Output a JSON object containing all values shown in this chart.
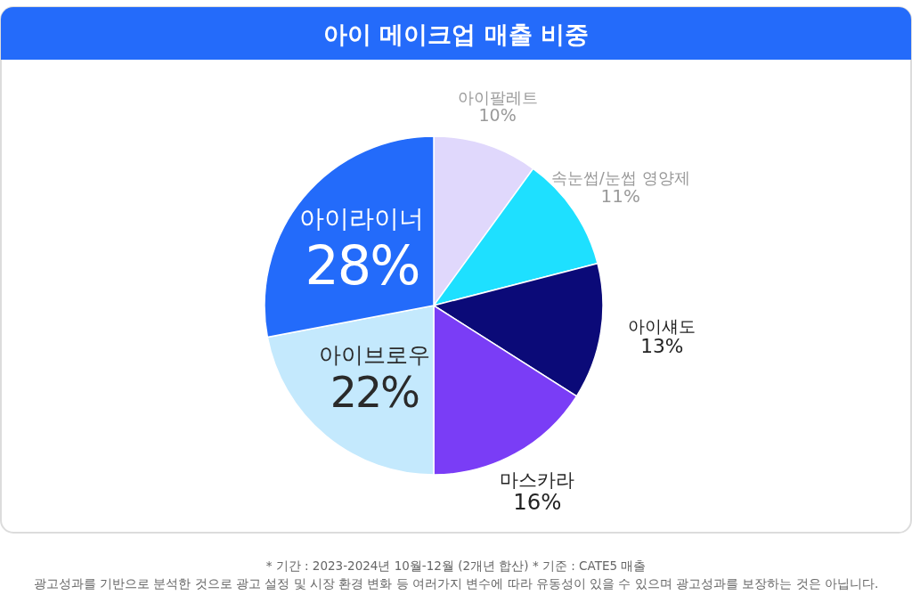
{
  "chart_data": {
    "type": "pie",
    "title": "아이 메이크업 매출 비중",
    "categories": [
      "아이팔레트",
      "속눈썹/눈썹 영양제",
      "아이섀도",
      "마스카라",
      "아이브로우",
      "아이라이너"
    ],
    "values": [
      10,
      11,
      13,
      16,
      22,
      28
    ],
    "colors": [
      "#e0d8fc",
      "#1ee0ff",
      "#0b0a78",
      "#7a3df6",
      "#c4e9fd",
      "#236bfa"
    ],
    "value_labels": [
      "10%",
      "11%",
      "13%",
      "16%",
      "22%",
      "28%"
    ],
    "annotations": [
      "* 기간 : 2023-2024년 10월-12월 (2개년 합산)  * 기준 : CATE5 매출",
      "광고성과를 기반으로 분석한 것으로 광고 설정 및 시장 환경 변화 등 여러가지  변수에 따라 유동성이 있을 수 있으며 광고성과를 보장하는 것은 아닙니다."
    ]
  }
}
